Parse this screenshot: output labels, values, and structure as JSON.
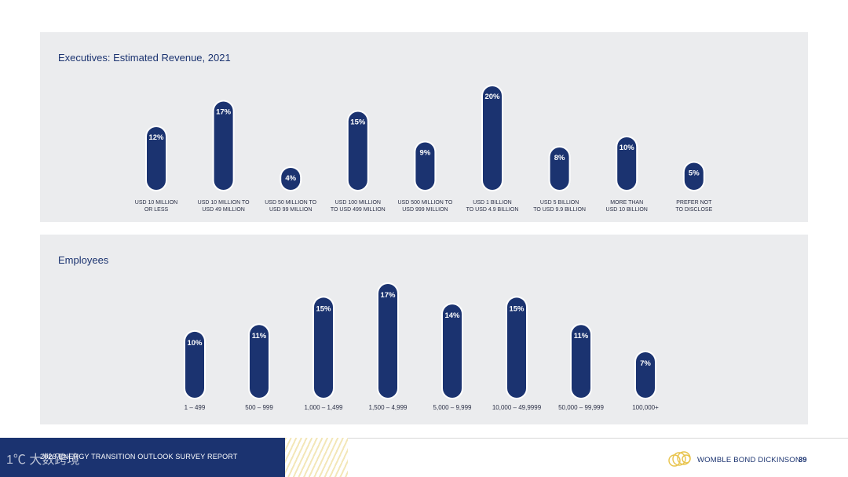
{
  "charts": {
    "revenue": {
      "title": "Executives: Estimated Revenue, 2021"
    },
    "employees": {
      "title": "Employees"
    }
  },
  "chart_data": [
    {
      "type": "bar",
      "title": "Executives: Estimated Revenue, 2021",
      "categories": [
        [
          "USD 10 MILLION",
          "OR LESS"
        ],
        [
          "USD 10 MILLION TO",
          "USD 49 MILLION"
        ],
        [
          "USD 50 MILLION TO",
          "USD 99 MILLION"
        ],
        [
          "USD 100 MILLION",
          "TO USD 499 MILLION"
        ],
        [
          "USD 500 MILLION TO",
          "USD 999 MILLION"
        ],
        [
          "USD 1 BILLION",
          "TO USD 4.9 BILLION"
        ],
        [
          "USD 5 BILLION",
          "TO USD 9.9 BILLION"
        ],
        [
          "MORE THAN",
          "USD 10 BILLION"
        ],
        [
          "PREFER NOT",
          "TO DISCLOSE"
        ]
      ],
      "values": [
        12,
        17,
        4,
        15,
        9,
        20,
        8,
        10,
        5
      ],
      "value_labels": [
        "12%",
        "17%",
        "4%",
        "15%",
        "9%",
        "20%",
        "8%",
        "10%",
        "5%"
      ],
      "unit": "%",
      "bar_color": "#1b3370"
    },
    {
      "type": "bar",
      "title": "Employees",
      "categories": [
        "1 – 499",
        "500 – 999",
        "1,000 – 1,499",
        "1,500 – 4,999",
        "5,000 – 9,999",
        "10,000 – 49,9999",
        "50,000 – 99,999",
        "100,000+"
      ],
      "values": [
        10,
        11,
        15,
        17,
        14,
        15,
        11,
        7
      ],
      "value_labels": [
        "10%",
        "11%",
        "15%",
        "17%",
        "14%",
        "15%",
        "11%",
        "7%"
      ],
      "unit": "%",
      "bar_color": "#1b3370"
    }
  ],
  "footer": {
    "report_title": "2023 ENERGY TRANSITION OUTLOOK SURVEY REPORT",
    "watermark": "1℃ 大数跨境",
    "brand": "WOMBLE BOND DICKINSON",
    "page_number": "39"
  },
  "colors": {
    "navy": "#1b3370",
    "panel_bg": "#ebecee",
    "gold": "#e8c34a"
  },
  "icons": {
    "brand_logo": "womble-bond-dickinson-logo"
  }
}
